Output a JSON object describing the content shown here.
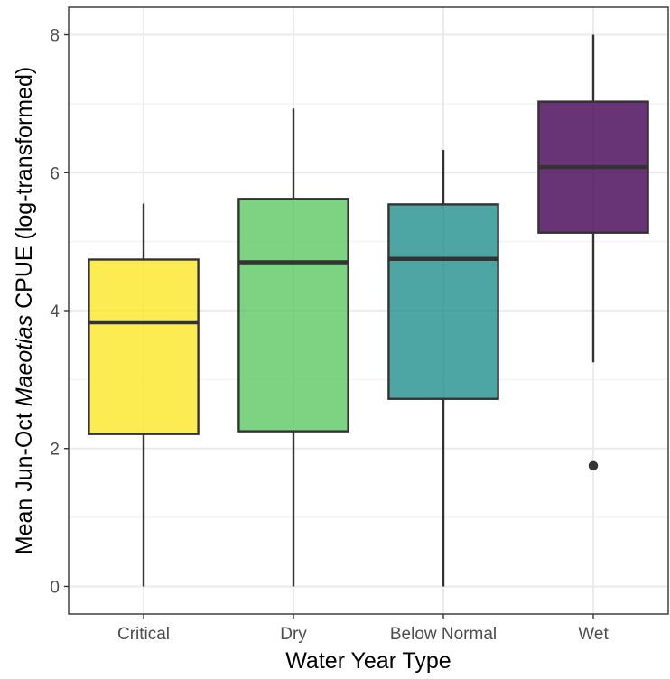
{
  "chart_data": {
    "type": "boxplot",
    "title": "",
    "xlabel": "Water Year Type",
    "ylabel": {
      "prefix": "Mean Jun-Oct ",
      "italic": "Maeotias",
      "suffix": " CPUE (log-transformed)"
    },
    "ylim": [
      -0.4,
      8.4
    ],
    "yticks": [
      0,
      2,
      4,
      6,
      8
    ],
    "grid": true,
    "legend": "none",
    "categories": [
      "Critical",
      "Dry",
      "Below Normal",
      "Wet"
    ],
    "boxes": [
      {
        "category": "Critical",
        "min": 0.0,
        "q1": 2.21,
        "median": 3.83,
        "q3": 4.74,
        "max": 5.55,
        "outliers": [],
        "color": "#FDE725"
      },
      {
        "category": "Dry",
        "min": 0.0,
        "q1": 2.25,
        "median": 4.7,
        "q3": 5.62,
        "max": 6.93,
        "outliers": [],
        "color": "#5DC863"
      },
      {
        "category": "Below Normal",
        "min": 0.0,
        "q1": 2.72,
        "median": 4.75,
        "q3": 5.54,
        "max": 6.33,
        "outliers": [],
        "color": "#21908C"
      },
      {
        "category": "Wet",
        "min": 3.25,
        "q1": 5.13,
        "median": 6.08,
        "q3": 7.03,
        "max": 8.0,
        "outliers": [
          1.75
        ],
        "color": "#440154"
      }
    ]
  }
}
